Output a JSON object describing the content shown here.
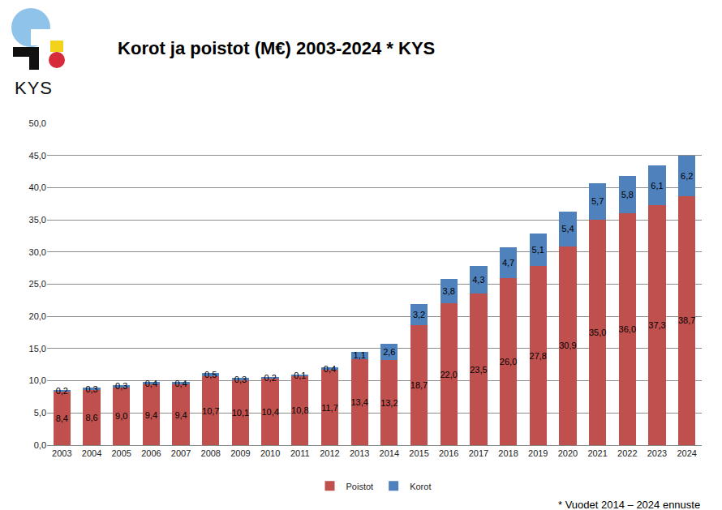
{
  "chart_data": {
    "type": "bar",
    "title": "Korot ja poistot (M€) 2003-2024 * KYS",
    "categories": [
      "2003",
      "2004",
      "2005",
      "2006",
      "2007",
      "2008",
      "2009",
      "2010",
      "2011",
      "2012",
      "2013",
      "2014",
      "2015",
      "2016",
      "2017",
      "2018",
      "2019",
      "2020",
      "2021",
      "2022",
      "2023",
      "2024"
    ],
    "series": [
      {
        "name": "Poistot",
        "color": "#c0504d",
        "values": [
          8.4,
          8.6,
          9.0,
          9.4,
          9.4,
          10.7,
          10.1,
          10.4,
          10.8,
          11.7,
          13.4,
          13.2,
          18.7,
          22.0,
          23.5,
          26.0,
          27.8,
          30.9,
          35.0,
          36.0,
          37.3,
          38.7
        ],
        "value_labels": [
          "8,4",
          "8,6",
          "9,0",
          "9,4",
          "9,4",
          "10,7",
          "10,1",
          "10,4",
          "10,8",
          "11,7",
          "13,4",
          "13,2",
          "18,7",
          "22,0",
          "23,5",
          "26,0",
          "27,8",
          "30,9",
          "35,0",
          "36,0",
          "37,3",
          "38,7"
        ]
      },
      {
        "name": "Korot",
        "color": "#4f81bd",
        "values": [
          0.2,
          0.3,
          0.3,
          0.4,
          0.4,
          0.5,
          0.3,
          0.2,
          0.1,
          0.4,
          1.1,
          2.6,
          3.2,
          3.8,
          4.3,
          4.7,
          5.1,
          5.4,
          5.7,
          5.8,
          6.1,
          6.2
        ],
        "value_labels": [
          "0,2",
          "0,3",
          "0,3",
          "0,4",
          "0,4",
          "0,5",
          "0,3",
          "0,2",
          "0,1",
          "0,4",
          "1,1",
          "2,6",
          "3,2",
          "3,8",
          "4,3",
          "4,7",
          "5,1",
          "5,4",
          "5,7",
          "5,8",
          "6,1",
          "6,2"
        ]
      }
    ],
    "ylim": [
      0,
      50
    ],
    "yticks": [
      {
        "value": 0,
        "label": "0,0"
      },
      {
        "value": 5,
        "label": "5,0"
      },
      {
        "value": 10,
        "label": "10,0"
      },
      {
        "value": 15,
        "label": "15,0"
      },
      {
        "value": 20,
        "label": "20,0"
      },
      {
        "value": 25,
        "label": "25,0"
      },
      {
        "value": 30,
        "label": "30,0"
      },
      {
        "value": 35,
        "label": "35,0"
      },
      {
        "value": 40,
        "label": "40,0"
      },
      {
        "value": 45,
        "label": "45,0"
      },
      {
        "value": 50,
        "label": "50,0"
      }
    ],
    "grid": true,
    "legend": "bottom",
    "stacked": true,
    "data_labels": true,
    "annotations": [
      "KYS",
      "* Vuodet 2014 – 2024 ennuste"
    ]
  }
}
